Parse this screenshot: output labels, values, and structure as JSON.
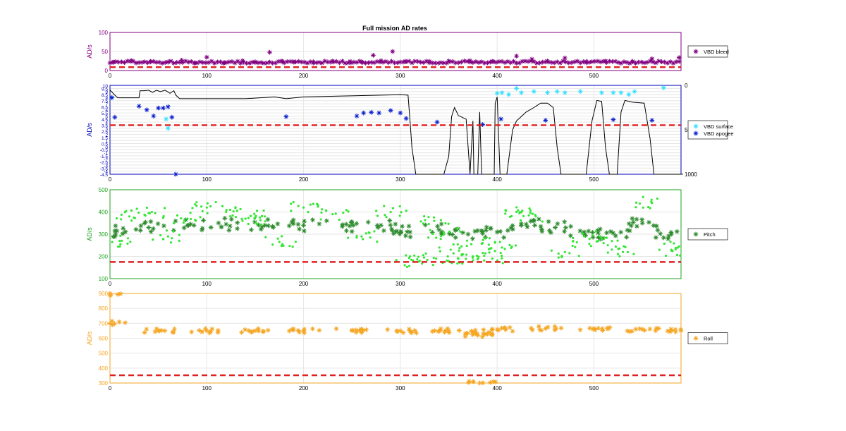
{
  "figure": {
    "title": "Full mission AD rates"
  },
  "chart_data": [
    {
      "type": "scatter",
      "id": "bleed",
      "ylabel": "AD/s",
      "color": "#800080",
      "xlim": [
        0,
        590
      ],
      "ylim": [
        0,
        100
      ],
      "xticks": [
        0,
        100,
        200,
        300,
        400,
        500
      ],
      "yticks": [
        0,
        50,
        100
      ],
      "threshold": 9,
      "legend": [
        "VBD bleed"
      ],
      "series": [
        {
          "name": "VBD bleed",
          "marker": "*",
          "color": "#800080",
          "points": [
            [
              4,
              22
            ],
            [
              22,
              26
            ],
            [
              42,
              24
            ],
            [
              60,
              23
            ],
            [
              74,
              27
            ],
            [
              88,
              20
            ],
            [
              100,
              35
            ],
            [
              118,
              21
            ],
            [
              137,
              26
            ],
            [
              150,
              23
            ],
            [
              165,
              48
            ],
            [
              178,
              24
            ],
            [
              190,
              22
            ],
            [
              210,
              23
            ],
            [
              230,
              25
            ],
            [
              248,
              24
            ],
            [
              260,
              22
            ],
            [
              272,
              40
            ],
            [
              280,
              26
            ],
            [
              292,
              50
            ],
            [
              305,
              24
            ],
            [
              330,
              24
            ],
            [
              350,
              25
            ],
            [
              372,
              26
            ],
            [
              395,
              24
            ],
            [
              420,
              38
            ],
            [
              436,
              30
            ],
            [
              452,
              25
            ],
            [
              470,
              33
            ],
            [
              492,
              24
            ],
            [
              512,
              25
            ],
            [
              540,
              24
            ],
            [
              560,
              31
            ],
            [
              588,
              34
            ]
          ],
          "baseline": 22
        }
      ]
    },
    {
      "type": "scatter",
      "id": "vbd",
      "ylabel": "AD/s",
      "color": "#0000b4",
      "xlim": [
        0,
        590
      ],
      "ylim": [
        -4.5,
        10
      ],
      "xticks": [
        0,
        100,
        200,
        300,
        400,
        500
      ],
      "yticks": [
        -4.5,
        -4,
        -3.5,
        -3,
        -2.5,
        -2,
        -1.5,
        -1,
        -0.5,
        0,
        0.5,
        1,
        1.5,
        2,
        2.5,
        3,
        3.5,
        4,
        4.5,
        5,
        5.5,
        6,
        6.5,
        7,
        7.5,
        8,
        8.5,
        9,
        9.5,
        10
      ],
      "ytick_labels": [
        "-4.5",
        "-4",
        "-3.5",
        "-3",
        "-2.5",
        "-2",
        "-1.5",
        "-1",
        "-0.5",
        "0",
        "0.5",
        "1",
        "1.5",
        "2",
        "2.5",
        "3",
        "3.5",
        "4",
        "4.5",
        "5",
        "5.5",
        "6",
        "6.5",
        "7",
        "7.5",
        "8",
        "8.5",
        "9",
        "9.5",
        "10"
      ],
      "y2lim": [
        0,
        1000
      ],
      "y2ticks": [
        0,
        500,
        1000
      ],
      "y2tick_labels": [
        "0",
        "500",
        "1000"
      ],
      "threshold": 3.5,
      "legend": [
        "VBD surface",
        "VBD apogee"
      ],
      "series": [
        {
          "name": "VBD surface",
          "marker": "*",
          "color": "#33e0ff",
          "points": [
            [
              2,
              8.0
            ],
            [
              58,
              4.5
            ],
            [
              60,
              3.0
            ],
            [
              400,
              8.7
            ],
            [
              405,
              8.8
            ],
            [
              412,
              8.5
            ],
            [
              420,
              9.5
            ],
            [
              425,
              8.8
            ],
            [
              438,
              9.0
            ],
            [
              452,
              8.8
            ],
            [
              462,
              9.0
            ],
            [
              470,
              8.8
            ],
            [
              486,
              9.0
            ],
            [
              508,
              8.8
            ],
            [
              520,
              8.8
            ],
            [
              528,
              8.8
            ],
            [
              536,
              8.5
            ],
            [
              542,
              9.0
            ],
            [
              572,
              9.6
            ]
          ]
        },
        {
          "name": "VBD apogee",
          "marker": "*",
          "color": "#0b1fcf",
          "points": [
            [
              2,
              8.0
            ],
            [
              5,
              4.8
            ],
            [
              30,
              6.6
            ],
            [
              38,
              6.0
            ],
            [
              45,
              5.0
            ],
            [
              50,
              6.3
            ],
            [
              55,
              6.3
            ],
            [
              60,
              6.5
            ],
            [
              64,
              4.8
            ],
            [
              68,
              -4.5
            ],
            [
              182,
              4.9
            ],
            [
              255,
              5.0
            ],
            [
              262,
              5.5
            ],
            [
              270,
              5.6
            ],
            [
              278,
              5.5
            ],
            [
              290,
              5.9
            ],
            [
              300,
              5.5
            ],
            [
              306,
              4.6
            ],
            [
              338,
              4.0
            ],
            [
              385,
              3.6
            ],
            [
              404,
              4.5
            ],
            [
              450,
              4.3
            ],
            [
              520,
              4.4
            ],
            [
              560,
              4.3
            ]
          ]
        }
      ],
      "line_series": {
        "axis": "right",
        "color": "#000000",
        "points": [
          [
            0,
            52
          ],
          [
            5,
            110
          ],
          [
            8,
            140
          ],
          [
            12,
            140
          ],
          [
            30,
            140
          ],
          [
            31,
            60
          ],
          [
            35,
            60
          ],
          [
            40,
            55
          ],
          [
            44,
            80
          ],
          [
            48,
            55
          ],
          [
            52,
            70
          ],
          [
            57,
            55
          ],
          [
            62,
            90
          ],
          [
            66,
            60
          ],
          [
            68,
            110
          ],
          [
            72,
            150
          ],
          [
            100,
            150
          ],
          [
            140,
            150
          ],
          [
            170,
            130
          ],
          [
            182,
            150
          ],
          [
            200,
            130
          ],
          [
            240,
            120
          ],
          [
            260,
            115
          ],
          [
            280,
            110
          ],
          [
            300,
            105
          ],
          [
            308,
            110
          ],
          [
            310,
            400
          ],
          [
            312,
            700
          ],
          [
            316,
            1000
          ],
          [
            345,
            1000
          ],
          [
            350,
            800
          ],
          [
            353,
            350
          ],
          [
            356,
            250
          ],
          [
            360,
            340
          ],
          [
            368,
            380
          ],
          [
            372,
            1000
          ],
          [
            375,
            400
          ],
          [
            376,
            1000
          ],
          [
            380,
            1000
          ],
          [
            382,
            300
          ],
          [
            384,
            1000
          ],
          [
            397,
            1000
          ],
          [
            398,
            200
          ],
          [
            400,
            130
          ],
          [
            403,
            1000
          ],
          [
            410,
            1000
          ],
          [
            416,
            500
          ],
          [
            420,
            400
          ],
          [
            425,
            350
          ],
          [
            430,
            300
          ],
          [
            438,
            250
          ],
          [
            445,
            200
          ],
          [
            452,
            200
          ],
          [
            458,
            250
          ],
          [
            462,
            700
          ],
          [
            466,
            1000
          ],
          [
            492,
            1000
          ],
          [
            498,
            400
          ],
          [
            503,
            170
          ],
          [
            508,
            180
          ],
          [
            512,
            700
          ],
          [
            516,
            1000
          ],
          [
            524,
            1000
          ],
          [
            528,
            300
          ],
          [
            532,
            170
          ],
          [
            540,
            190
          ],
          [
            552,
            200
          ],
          [
            558,
            600
          ],
          [
            562,
            1000
          ],
          [
            592,
            1000
          ]
        ]
      }
    },
    {
      "type": "scatter",
      "id": "pitch",
      "ylabel": "AD/s",
      "color": "#21a121",
      "xlim": [
        0,
        590
      ],
      "ylim": [
        100,
        500
      ],
      "xticks": [
        0,
        100,
        200,
        300,
        400,
        500
      ],
      "yticks": [
        100,
        200,
        300,
        400,
        500
      ],
      "threshold": 175,
      "legend": [
        "Pitch"
      ],
      "series": [
        {
          "name": "Pitch",
          "marker": "*",
          "color": "#2d8a2d",
          "points": [
            [
              5,
              315
            ],
            [
              40,
              330
            ],
            [
              80,
              340
            ],
            [
              120,
              345
            ],
            [
              160,
              340
            ],
            [
              200,
              340
            ],
            [
              240,
              335
            ],
            [
              280,
              340
            ],
            [
              310,
              310
            ],
            [
              340,
              320
            ],
            [
              370,
              300
            ],
            [
              400,
              310
            ],
            [
              430,
              345
            ],
            [
              460,
              330
            ],
            [
              490,
              310
            ],
            [
              520,
              305
            ],
            [
              550,
              350
            ],
            [
              580,
              300
            ]
          ]
        },
        {
          "name": "",
          "marker": "•",
          "color": "#33e633",
          "points": [
            [
              10,
              270
            ],
            [
              20,
              380
            ],
            [
              40,
              395
            ],
            [
              60,
              290
            ],
            [
              80,
              370
            ],
            [
              100,
              420
            ],
            [
              120,
              400
            ],
            [
              140,
              370
            ],
            [
              160,
              380
            ],
            [
              175,
              265
            ],
            [
              200,
              420
            ],
            [
              230,
              390
            ],
            [
              260,
              290
            ],
            [
              290,
              400
            ],
            [
              310,
              200
            ],
            [
              320,
              180
            ],
            [
              335,
              360
            ],
            [
              345,
              300
            ],
            [
              352,
              230
            ],
            [
              360,
              190
            ],
            [
              375,
              200
            ],
            [
              385,
              260
            ],
            [
              395,
              190
            ],
            [
              405,
              240
            ],
            [
              420,
              400
            ],
            [
              440,
              380
            ],
            [
              470,
              220
            ],
            [
              490,
              290
            ],
            [
              510,
              260
            ],
            [
              530,
              220
            ],
            [
              560,
              440
            ],
            [
              580,
              230
            ],
            [
              588,
              245
            ]
          ]
        }
      ]
    },
    {
      "type": "scatter",
      "id": "roll",
      "ylabel": "AD/s",
      "color": "#f5a623",
      "xlim": [
        0,
        590
      ],
      "ylim": [
        300,
        900
      ],
      "xticks": [
        0,
        100,
        200,
        300,
        400,
        500
      ],
      "yticks": [
        300,
        400,
        500,
        600,
        700,
        800,
        900
      ],
      "threshold": 352,
      "legend": [
        "Roll"
      ],
      "series": [
        {
          "name": "Roll",
          "marker": "*",
          "color": "#f5a623",
          "points": [
            [
              0,
              900
            ],
            [
              0,
              700
            ],
            [
              50,
              650
            ],
            [
              100,
              650
            ],
            [
              150,
              650
            ],
            [
              200,
              650
            ],
            [
              250,
              650
            ],
            [
              300,
              650
            ],
            [
              350,
              650
            ],
            [
              375,
              640
            ],
            [
              380,
              620
            ],
            [
              382,
              300
            ],
            [
              400,
              660
            ],
            [
              450,
              665
            ],
            [
              500,
              665
            ],
            [
              550,
              660
            ],
            [
              590,
              650
            ]
          ]
        }
      ]
    }
  ]
}
